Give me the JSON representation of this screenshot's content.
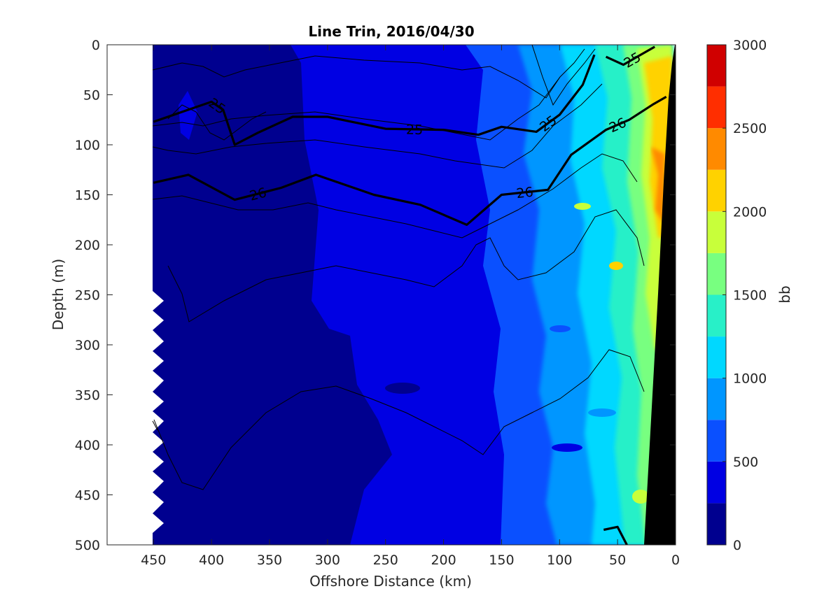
{
  "chart_data": {
    "type": "heatmap",
    "title": "Line Trin, 2016/04/30",
    "xlabel": "Offshore Distance (km)",
    "ylabel": "Depth (m)",
    "xlim": [
      490,
      0
    ],
    "ylim": [
      500,
      0
    ],
    "x_reversed": true,
    "y_reversed": true,
    "x_ticks": [
      450,
      400,
      350,
      300,
      250,
      200,
      150,
      100,
      50,
      0
    ],
    "y_ticks": [
      0,
      50,
      100,
      150,
      200,
      250,
      300,
      350,
      400,
      450,
      500
    ],
    "colorbar": {
      "label": "bb",
      "range": [
        0,
        3000
      ],
      "ticks": [
        0,
        500,
        1000,
        1500,
        2000,
        2500,
        3000
      ],
      "levels": [
        0,
        250,
        500,
        750,
        1000,
        1250,
        1500,
        1750,
        2000,
        2250,
        2500,
        2750,
        3000
      ],
      "colors": [
        "#00008f",
        "#0000e3",
        "#0a50ff",
        "#0096ff",
        "#00d8ff",
        "#28f0c8",
        "#78ff80",
        "#c8ff3a",
        "#ffd200",
        "#ff8a00",
        "#ff2e00",
        "#d00000"
      ]
    },
    "isopycnals": [
      {
        "label": "25",
        "depth_profile": [
          {
            "x": 450,
            "y": 77
          },
          {
            "x": 420,
            "y": 65
          },
          {
            "x": 400,
            "y": 57
          },
          {
            "x": 390,
            "y": 65
          },
          {
            "x": 380,
            "y": 100
          },
          {
            "x": 360,
            "y": 88
          },
          {
            "x": 330,
            "y": 72
          },
          {
            "x": 300,
            "y": 72
          },
          {
            "x": 250,
            "y": 84
          },
          {
            "x": 200,
            "y": 85
          },
          {
            "x": 170,
            "y": 90
          },
          {
            "x": 150,
            "y": 82
          },
          {
            "x": 120,
            "y": 87
          },
          {
            "x": 100,
            "y": 70
          },
          {
            "x": 80,
            "y": 40
          },
          {
            "x": 70,
            "y": 10
          }
        ]
      },
      {
        "label": "25",
        "depth_profile": [
          {
            "x": 60,
            "y": 12
          },
          {
            "x": 45,
            "y": 20
          },
          {
            "x": 30,
            "y": 10
          },
          {
            "x": 18,
            "y": 2
          }
        ]
      },
      {
        "label": "26",
        "depth_profile": [
          {
            "x": 450,
            "y": 138
          },
          {
            "x": 420,
            "y": 130
          },
          {
            "x": 380,
            "y": 155
          },
          {
            "x": 340,
            "y": 143
          },
          {
            "x": 310,
            "y": 130
          },
          {
            "x": 260,
            "y": 150
          },
          {
            "x": 220,
            "y": 160
          },
          {
            "x": 180,
            "y": 180
          },
          {
            "x": 150,
            "y": 150
          },
          {
            "x": 110,
            "y": 145
          },
          {
            "x": 90,
            "y": 110
          },
          {
            "x": 60,
            "y": 85
          },
          {
            "x": 40,
            "y": 75
          },
          {
            "x": 20,
            "y": 60
          },
          {
            "x": 8,
            "y": 52
          }
        ]
      },
      {
        "label": "",
        "depth_profile": [
          {
            "x": 62,
            "y": 485
          },
          {
            "x": 50,
            "y": 482
          },
          {
            "x": 42,
            "y": 500
          }
        ]
      }
    ],
    "bathymetry_color": "#000000"
  }
}
